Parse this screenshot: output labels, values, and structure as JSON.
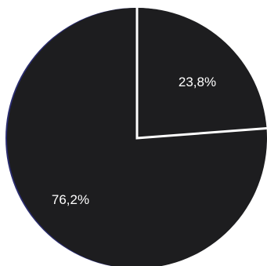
{
  "chart_data": {
    "type": "pie",
    "slices": [
      {
        "label": "23,8%",
        "value": 23.8,
        "color": "#1d1d1f"
      },
      {
        "label": "76,2%",
        "value": 76.2,
        "color": "#1d1d1f"
      }
    ],
    "separator_color": "#ffffff",
    "edge_tint_color": "#2a2c6e"
  }
}
